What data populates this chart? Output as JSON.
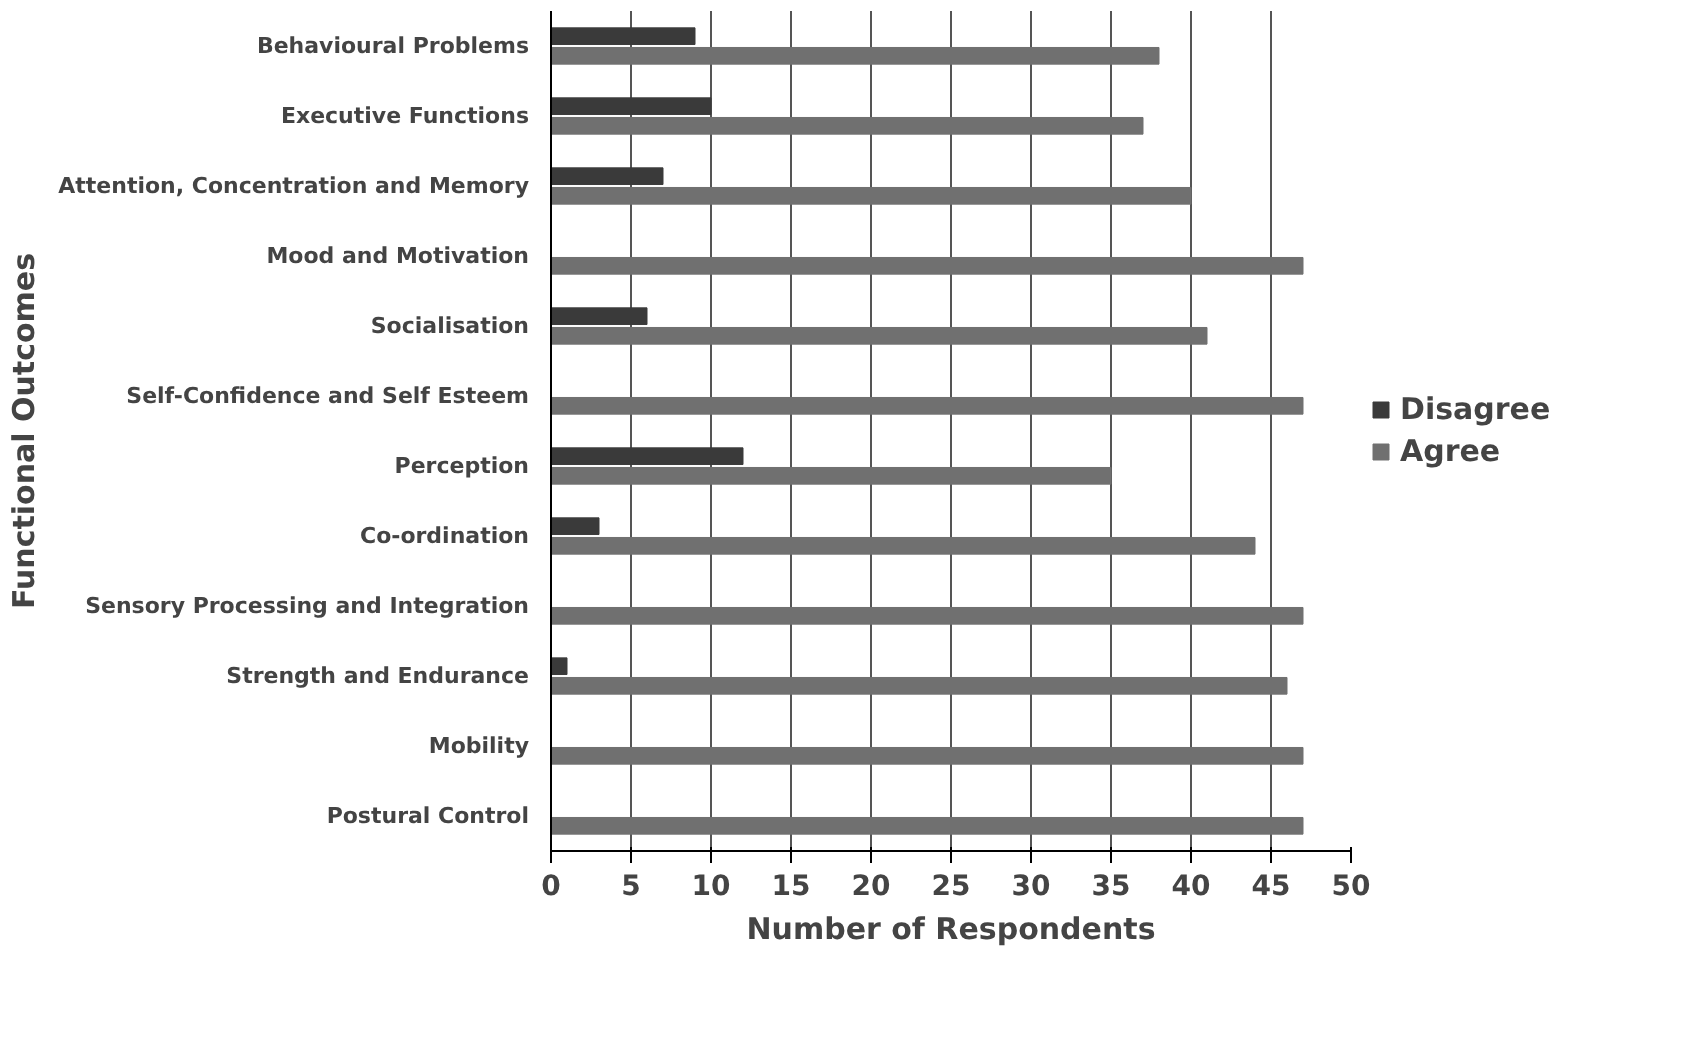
{
  "chart_data": {
    "type": "bar",
    "orientation": "horizontal",
    "xlabel": "Number of Respondents",
    "ylabel": "Functional Outcomes",
    "categories": [
      "Behavioural Problems",
      "Executive Functions",
      "Attention, Concentration and Memory",
      "Mood and Motivation",
      "Socialisation",
      "Self-Confidence and Self Esteem",
      "Perception",
      "Co-ordination",
      "Sensory Processing and Integration",
      "Strength and Endurance",
      "Mobility",
      "Postural Control"
    ],
    "series": [
      {
        "name": "Disagree",
        "color": "#3a3a3a",
        "values": [
          9,
          10,
          7,
          0,
          6,
          0,
          12,
          3,
          0,
          1,
          0,
          0
        ]
      },
      {
        "name": "Agree",
        "color": "#707070",
        "values": [
          38,
          37,
          40,
          47,
          41,
          47,
          35,
          44,
          47,
          46,
          47,
          47
        ]
      }
    ],
    "xlim": [
      0,
      50
    ],
    "xticks": [
      0,
      5,
      10,
      15,
      20,
      25,
      30,
      35,
      40,
      45,
      50
    ],
    "grid": "x",
    "legend": "right"
  }
}
